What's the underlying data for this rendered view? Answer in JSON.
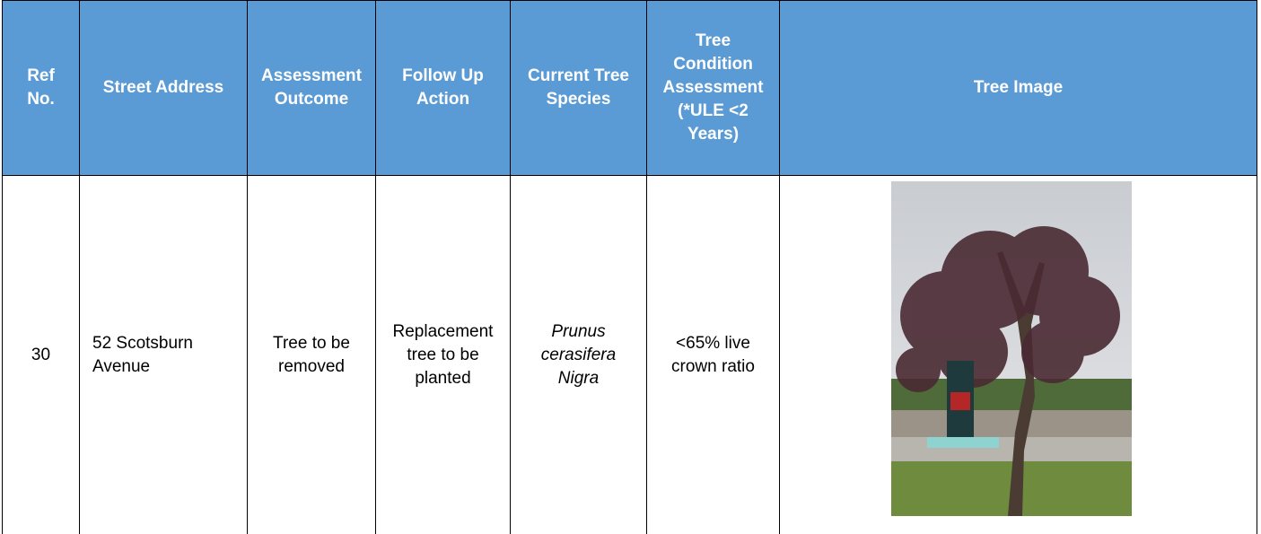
{
  "table": {
    "header": [
      "Ref No.",
      "Street Address",
      "Assessment Outcome",
      "Follow Up Action",
      "Current Tree Species",
      "Tree Condition Assessment (*ULE <2 Years)",
      "Tree Image"
    ],
    "rows": [
      [
        "30",
        "52 Scotsburn Avenue",
        "Tree to be removed",
        "Replacement tree to be planted",
        "Prunus cerasifera Nigra",
        "<65% live crown ratio"
      ]
    ]
  }
}
